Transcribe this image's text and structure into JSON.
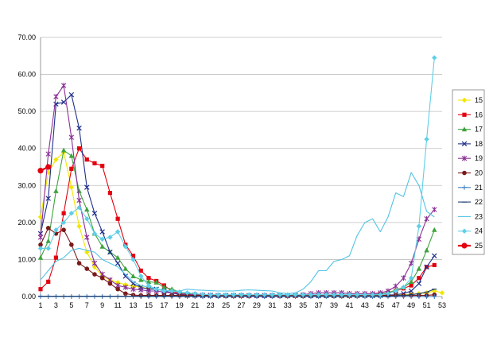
{
  "chart_data": {
    "type": "line",
    "title": "",
    "xlabel": "",
    "ylabel": "",
    "xlim": [
      1,
      53
    ],
    "ylim": [
      0,
      70
    ],
    "y_ticks": [
      0,
      10,
      20,
      30,
      40,
      50,
      60,
      70
    ],
    "y_tick_labels": [
      "0.00",
      "10.00",
      "20.00",
      "30.00",
      "40.00",
      "50.00",
      "60.00",
      "70.00"
    ],
    "x_ticks": [
      1,
      3,
      5,
      7,
      9,
      11,
      13,
      15,
      17,
      19,
      21,
      23,
      25,
      27,
      29,
      31,
      33,
      35,
      37,
      39,
      41,
      43,
      45,
      47,
      49,
      51,
      53
    ],
    "x_tick_labels": [
      "1",
      "3",
      "5",
      "7",
      "9",
      "11",
      "13",
      "15",
      "17",
      "19",
      "21",
      "23",
      "25",
      "27",
      "29",
      "31",
      "33",
      "35",
      "37",
      "39",
      "41",
      "43",
      "45",
      "47",
      "49",
      "51",
      "53"
    ],
    "grid": {
      "horizontal": true,
      "vertical": false
    },
    "legend_position": "right",
    "series": [
      {
        "name": "15",
        "color": "#f2e600",
        "marker": "diamond",
        "values": [
          21.5,
          33.5,
          37,
          39,
          29.5,
          19,
          12,
          8,
          5.5,
          4.5,
          3.8,
          3.2,
          2.8,
          2.5,
          2.2,
          2.0,
          1.8,
          1.5,
          1.0,
          0.8,
          0.6,
          0.5,
          0.4,
          0.3,
          0.3,
          0.2,
          0.2,
          0.2,
          0.2,
          0.2,
          0.2,
          0.2,
          0.2,
          0.2,
          0.2,
          0.2,
          0.2,
          0.2,
          0.2,
          0.2,
          0.2,
          0.2,
          0.2,
          0.2,
          0.2,
          0.3,
          0.4,
          0.5,
          0.6,
          0.8,
          1.0,
          1.5,
          1.0
        ]
      },
      {
        "name": "16",
        "color": "#e3000f",
        "marker": "square",
        "values": [
          2.0,
          4.0,
          10.5,
          22.5,
          34.5,
          40,
          37,
          36,
          35.3,
          28,
          21,
          14,
          11,
          7,
          5,
          4.2,
          3,
          1.5,
          0.8,
          0.5,
          0.4,
          0.3,
          0.3,
          0.2,
          0.2,
          0.2,
          0.2,
          0.2,
          0.2,
          0.2,
          0.2,
          0.2,
          0.2,
          0.2,
          0.2,
          0.2,
          0.2,
          0.2,
          0.2,
          0.2,
          0.2,
          0.3,
          0.4,
          0.5,
          0.7,
          1.0,
          1.5,
          2.2,
          3.0,
          5.0,
          8.0,
          8.5
        ]
      },
      {
        "name": "17",
        "color": "#3da33d",
        "marker": "triangle",
        "values": [
          10.5,
          15,
          28.5,
          39.5,
          38,
          28.5,
          23.5,
          17,
          13.5,
          12,
          10.5,
          7.5,
          5.5,
          4.5,
          4.0,
          3.8,
          2.5,
          2.0,
          1.2,
          0.8,
          0.5,
          0.4,
          0.3,
          0.3,
          0.3,
          0.3,
          0.3,
          0.3,
          0.3,
          0.3,
          0.3,
          0.3,
          0.3,
          0.3,
          0.3,
          0.3,
          0.3,
          0.3,
          0.3,
          0.3,
          0.3,
          0.3,
          0.4,
          0.5,
          0.7,
          1.0,
          1.8,
          2.5,
          4.0,
          7.5,
          12.5,
          18
        ]
      },
      {
        "name": "18",
        "color": "#1f2f8c",
        "marker": "x",
        "values": [
          17,
          26.5,
          52,
          52.5,
          54.5,
          45.5,
          29.5,
          22.5,
          17.5,
          12,
          9,
          5.5,
          3.5,
          2.5,
          2.0,
          2.0,
          1.5,
          1.0,
          0.5,
          0.3,
          0.3,
          0.2,
          0.2,
          0.2,
          0.2,
          0.2,
          0.2,
          0.2,
          0.2,
          0.2,
          0.2,
          0.2,
          0.2,
          0.2,
          0.2,
          0.2,
          0.2,
          0.2,
          0.2,
          0.2,
          0.2,
          0.2,
          0.2,
          0.2,
          0.3,
          0.4,
          0.5,
          0.8,
          1.5,
          3.5,
          8.0,
          11
        ]
      },
      {
        "name": "19",
        "color": "#8a2f95",
        "marker": "star",
        "values": [
          16,
          38.5,
          54,
          57,
          43,
          26,
          16,
          9,
          6,
          4.5,
          3.0,
          2.5,
          2.0,
          1.8,
          1.5,
          1.5,
          1.2,
          1.0,
          0.8,
          0.6,
          0.5,
          0.4,
          0.4,
          0.3,
          0.3,
          0.3,
          0.3,
          0.3,
          0.3,
          0.3,
          0.3,
          0.3,
          0.3,
          0.4,
          0.5,
          0.8,
          1.0,
          1.0,
          1.0,
          1.0,
          0.8,
          0.8,
          0.8,
          0.8,
          1.0,
          1.5,
          2.8,
          5.0,
          9.0,
          15.5,
          21,
          23.5
        ]
      },
      {
        "name": "20",
        "color": "#7a1a1a",
        "marker": "circle",
        "values": [
          14,
          18.5,
          17,
          18,
          14,
          9,
          7.5,
          6,
          5,
          3.5,
          2.0,
          0.8,
          0.4,
          0.3,
          0.3,
          0.3,
          0.3,
          0.3,
          0.3,
          0.3,
          0.3,
          0.3,
          0.3,
          0.3,
          0.3,
          0.3,
          0.3,
          0.3,
          0.3,
          0.3,
          0.3,
          0.3,
          0.3,
          0.3,
          0.3,
          0.3,
          0.3,
          0.3,
          0.3,
          0.3,
          0.3,
          0.3,
          0.3,
          0.3,
          0.3,
          0.3,
          0.3,
          0.3,
          0.3,
          0.3,
          0.3,
          0.5
        ]
      },
      {
        "name": "21",
        "color": "#3f7fbf",
        "marker": "plus",
        "values": [
          0,
          0,
          0,
          0,
          0,
          0,
          0,
          0,
          0,
          0,
          0,
          0,
          0,
          0,
          0,
          0,
          0,
          0,
          0,
          0,
          0,
          0,
          0,
          0,
          0,
          0,
          0,
          0,
          0,
          0,
          0,
          0,
          0,
          0,
          0,
          0,
          0,
          0,
          0,
          0,
          0,
          0,
          0,
          0,
          0,
          0,
          0,
          0,
          0,
          0,
          0,
          0
        ]
      },
      {
        "name": "22",
        "color": "#1f3f6f",
        "marker": "dash",
        "values": [
          0.1,
          0.1,
          0.1,
          0.1,
          0.1,
          0.1,
          0.1,
          0.1,
          0.1,
          0.1,
          0.1,
          0.1,
          0.1,
          0.1,
          0.1,
          0.1,
          0.1,
          0.1,
          0.1,
          0.1,
          0.1,
          0.1,
          0.1,
          0.1,
          0.1,
          0.1,
          0.1,
          0.1,
          0.1,
          0.1,
          0.1,
          0.1,
          0.1,
          0.1,
          0.1,
          0.1,
          0.1,
          0.1,
          0.1,
          0.1,
          0.1,
          0.1,
          0.1,
          0.1,
          0.1,
          0.1,
          0.2,
          0.3,
          0.5,
          0.8,
          1.2,
          2.0
        ]
      },
      {
        "name": "23",
        "color": "#52c3e3",
        "marker": "none",
        "values": [
          4.5,
          7,
          9.5,
          10.5,
          12.5,
          13,
          12.5,
          12,
          10,
          9,
          8,
          6,
          4,
          3,
          2.5,
          2.0,
          1.8,
          1.5,
          1.5,
          2.0,
          1.8,
          1.7,
          1.6,
          1.5,
          1.5,
          1.5,
          1.7,
          1.8,
          1.7,
          1.6,
          1.5,
          1.0,
          0.8,
          1.0,
          2.0,
          4.0,
          7.0,
          7.0,
          9.5,
          10,
          11,
          16.5,
          20,
          21,
          17.5,
          21.5,
          28,
          27,
          33.5,
          30,
          23,
          21.5
        ]
      },
      {
        "name": "24",
        "color": "#5fcfe6",
        "marker": "diamond",
        "values": [
          13,
          13,
          18,
          20,
          22.5,
          24,
          21,
          17,
          15.5,
          16,
          17.5,
          13.5,
          10,
          5.5,
          3.0,
          2.0,
          1.5,
          1.5,
          1.2,
          1.0,
          0.8,
          0.6,
          0.5,
          0.5,
          0.5,
          0.5,
          0.5,
          0.5,
          0.5,
          0.5,
          0.5,
          0.5,
          0.5,
          0.5,
          0.5,
          0.5,
          0.5,
          0.5,
          0.5,
          0.5,
          0.5,
          0.5,
          0.5,
          0.5,
          0.5,
          0.8,
          1.5,
          2.5,
          5.0,
          19,
          42.5,
          64.5
        ]
      },
      {
        "name": "25",
        "color": "#e3000f",
        "marker": "circle-big",
        "values": [
          34,
          35
        ]
      }
    ]
  }
}
